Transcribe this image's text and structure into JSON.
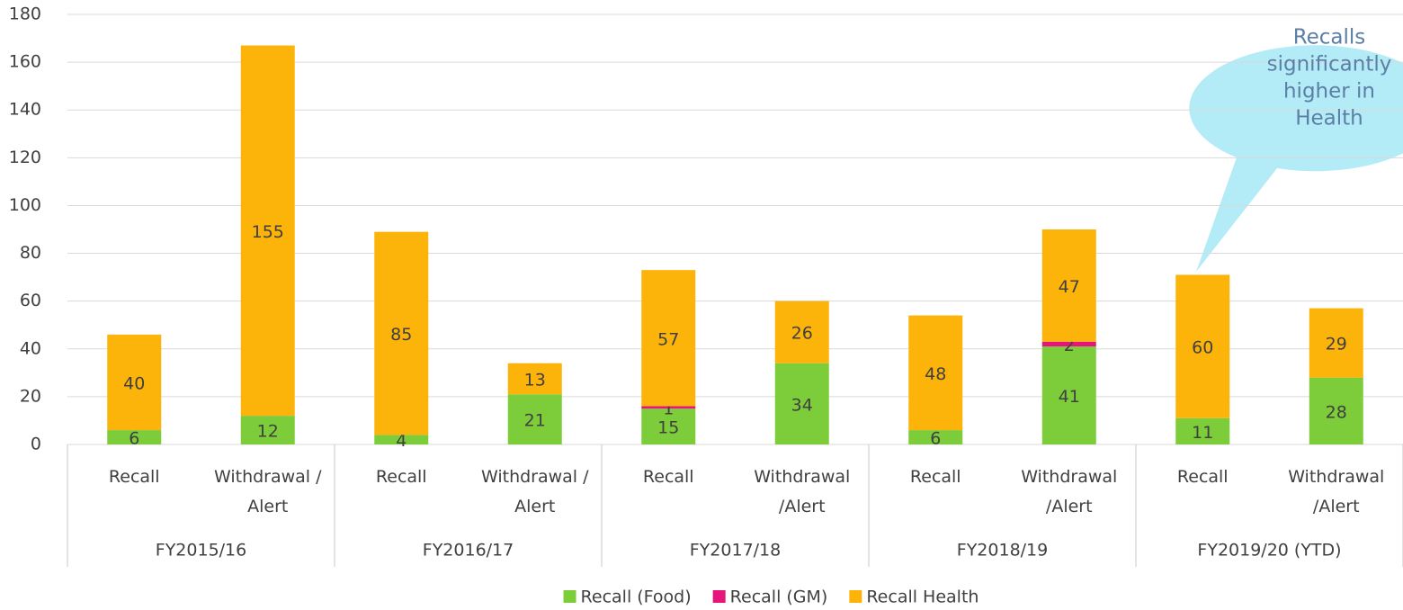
{
  "chart_data": {
    "type": "stacked_bar",
    "categories": [
      "Recall",
      "Withdrawal /\nAlert",
      "Recall",
      "Withdrawal /\nAlert",
      "Recall",
      "Withdrawal\n/Alert",
      "Recall",
      "Withdrawal\n/Alert",
      "Recall",
      "Withdrawal\n/Alert"
    ],
    "groups": [
      "FY2015/16",
      "FY2016/17",
      "FY2017/18",
      "FY2018/19",
      "FY2019/20 (YTD)"
    ],
    "series": [
      {
        "name": "Recall (Food)",
        "color": "#7dcd3a",
        "values": [
          6,
          12,
          4,
          21,
          15,
          34,
          6,
          41,
          11,
          28
        ]
      },
      {
        "name": "Recall (GM)",
        "color": "#e6157a",
        "values": [
          null,
          null,
          null,
          null,
          1,
          null,
          null,
          2,
          null,
          null
        ]
      },
      {
        "name": "Recall Health",
        "color": "#fdb40a",
        "values": [
          40,
          155,
          85,
          13,
          57,
          26,
          48,
          47,
          60,
          29
        ]
      }
    ],
    "ylim": [
      0,
      180
    ],
    "yticks": [
      0,
      20,
      40,
      60,
      80,
      100,
      120,
      140,
      160,
      180
    ],
    "grid": true,
    "legend": "bottom",
    "annotation": [
      "Recalls",
      "significantly",
      "higher in",
      "Health"
    ]
  }
}
